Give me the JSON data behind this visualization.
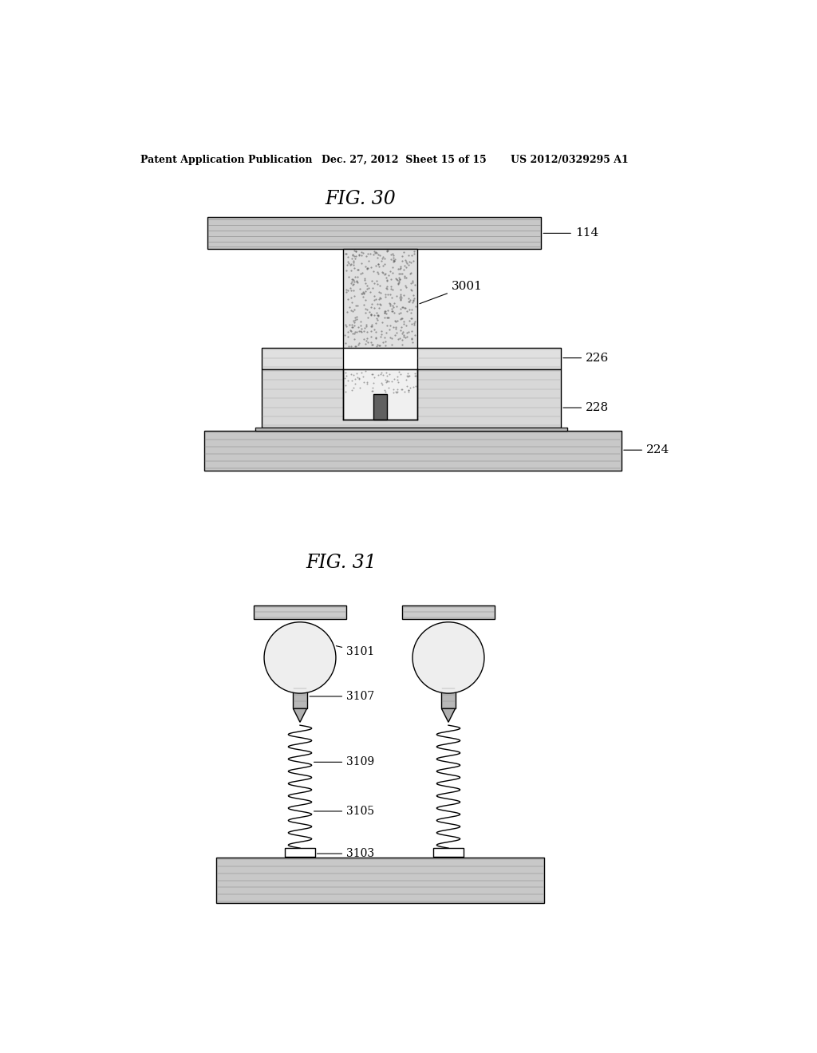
{
  "bg_color": "#ffffff",
  "header_left": "Patent Application Publication",
  "header_mid": "Dec. 27, 2012  Sheet 15 of 15",
  "header_right": "US 2012/0329295 A1",
  "fig30_title": "FIG. 30",
  "fig31_title": "FIG. 31",
  "label_114": "114",
  "label_3001": "3001",
  "label_226": "226",
  "label_228": "228",
  "label_224": "224",
  "label_3101": "3101",
  "label_3107": "3107",
  "label_3109": "3109",
  "label_3105": "3105",
  "label_3103": "3103",
  "line_color": "#000000"
}
